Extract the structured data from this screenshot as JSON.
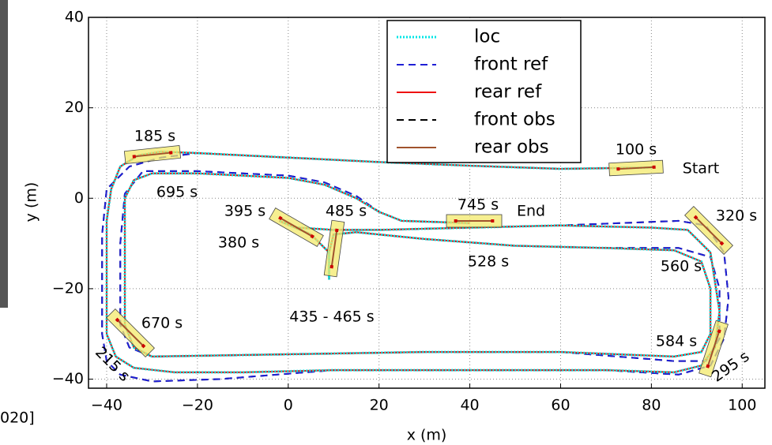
{
  "chart_data": {
    "type": "line",
    "xlabel": "x (m)",
    "ylabel": "y (m)",
    "xlim": [
      -44,
      105
    ],
    "ylim": [
      -42,
      40
    ],
    "xticks": [
      {
        "value": -40,
        "label": "−40"
      },
      {
        "value": -20,
        "label": "−20"
      },
      0,
      20,
      40,
      60,
      80,
      100
    ],
    "yticks": [
      {
        "value": -40,
        "label": "−40"
      },
      {
        "value": -20,
        "label": "−20"
      },
      0,
      20,
      40
    ],
    "grid": true,
    "legend": "upper center",
    "annotations": [
      "100 s",
      "Start",
      "185 s",
      "695 s",
      "395 s",
      "380 s",
      "485 s",
      "745 s",
      "End",
      "320 s",
      "528 s",
      "560 s",
      "435 - 465 s",
      "670 s",
      "584 s",
      "215 s",
      "295 s"
    ],
    "fragment": "020]",
    "series": [
      {
        "name": "loc",
        "color": "#00e5e5",
        "style": "dotted",
        "x": [
          80,
          60,
          40,
          20,
          0,
          -20,
          -28,
          -33,
          -37,
          -39,
          -40,
          -40,
          -38,
          -34,
          -25,
          -10,
          10,
          40,
          70,
          85,
          91,
          94,
          95,
          93,
          88,
          80,
          60,
          40,
          20,
          10,
          2,
          -2,
          5,
          9,
          9,
          9,
          10,
          15,
          30,
          50,
          70,
          85,
          91,
          93,
          93,
          91,
          85,
          60,
          30,
          0,
          -30,
          -34,
          -36,
          -36,
          -36,
          -34,
          -30,
          -20,
          0,
          8,
          15,
          20,
          25,
          40
        ],
        "y": [
          6.8,
          6.5,
          7.2,
          8,
          9,
          10,
          10.3,
          9.5,
          7,
          2,
          -5,
          -30,
          -35,
          -37.5,
          -38.5,
          -38.5,
          -38,
          -38,
          -38,
          -38.5,
          -37,
          -33,
          -25,
          -12,
          -7,
          -6.5,
          -6,
          -6.5,
          -7,
          -7,
          -6.5,
          -5,
          -8,
          -12,
          -18,
          -12,
          -8,
          -7.5,
          -9,
          -10.5,
          -11,
          -11.5,
          -14,
          -20,
          -30,
          -34,
          -35,
          -34,
          -34,
          -34.5,
          -35,
          -33,
          -28,
          -10,
          0,
          4,
          5.5,
          5.5,
          4.5,
          3,
          0,
          -3,
          -5,
          -5.5
        ]
      },
      {
        "name": "front ref",
        "color": "#1f1fd6",
        "style": "dashed",
        "x": [
          80,
          60,
          40,
          20,
          0,
          -20,
          -28,
          -35,
          -40,
          -41,
          -41,
          -40,
          -37,
          -30,
          -15,
          10,
          40,
          70,
          86,
          93,
          96,
          97,
          96,
          92,
          86,
          60,
          40,
          20,
          10,
          2,
          -2,
          5,
          9,
          9,
          9,
          10,
          15,
          30,
          50,
          70,
          86,
          93,
          95,
          95,
          92,
          85,
          60,
          30,
          0,
          -30,
          -35,
          -37,
          -37,
          -36,
          -32,
          -20,
          0,
          8,
          15,
          20,
          25,
          40
        ],
        "y": [
          6.8,
          6.5,
          7.2,
          8,
          9,
          10,
          9,
          7,
          2,
          -8,
          -30,
          -36,
          -39,
          -40.5,
          -40,
          -38,
          -38,
          -38,
          -39,
          -37,
          -31,
          -22,
          -12,
          -6,
          -5,
          -6,
          -6.5,
          -7,
          -7,
          -6.5,
          -5,
          -8,
          -12,
          -18,
          -12,
          -8,
          -7.5,
          -9,
          -10.5,
          -11,
          -11,
          -13,
          -20,
          -31,
          -36,
          -36,
          -34,
          -34,
          -34.5,
          -35,
          -33,
          -28,
          -10,
          1,
          6,
          6,
          5,
          3.5,
          0.5,
          -3,
          -5,
          -5.5
        ]
      },
      {
        "name": "rear ref",
        "color": "#ee1111",
        "style": "solid",
        "x": [
          80,
          60,
          40,
          20,
          0,
          -20,
          -28,
          -33,
          -37,
          -39,
          -40,
          -40,
          -38,
          -34,
          -25,
          -10,
          10,
          40,
          70,
          85,
          91,
          94,
          95,
          93,
          88,
          80,
          60,
          40,
          20,
          10,
          2,
          -2,
          5,
          9,
          9,
          9,
          10,
          15,
          30,
          50,
          70,
          85,
          91,
          93,
          93,
          91,
          85,
          60,
          30,
          0,
          -30,
          -34,
          -36,
          -36,
          -36,
          -34,
          -30,
          -20,
          0,
          8,
          15,
          20,
          25,
          40
        ],
        "y": [
          6.8,
          6.5,
          7.2,
          8,
          9,
          10,
          10.3,
          9.5,
          7,
          2,
          -5,
          -30,
          -35,
          -37.5,
          -38.5,
          -38.5,
          -38,
          -38,
          -38,
          -38.5,
          -37,
          -33,
          -25,
          -12,
          -7,
          -6.5,
          -6,
          -6.5,
          -7,
          -7,
          -6.5,
          -5,
          -8,
          -12,
          -18,
          -12,
          -8,
          -7.5,
          -9,
          -10.5,
          -11,
          -11.5,
          -14,
          -20,
          -30,
          -34,
          -35,
          -34,
          -34,
          -34.5,
          -35,
          -33,
          -28,
          -10,
          0,
          4,
          5.5,
          5.5,
          4.5,
          3,
          0,
          -3,
          -5,
          -5.5
        ]
      },
      {
        "name": "front obs",
        "color": "#000000",
        "style": "dashed",
        "x": [
          80,
          60,
          40,
          20,
          0,
          -20,
          -28,
          -35,
          -40,
          -41,
          -41,
          -40,
          -37,
          -30,
          -15,
          10,
          40,
          70,
          86,
          93,
          96,
          97,
          96,
          92,
          86,
          60,
          40,
          20,
          10,
          2,
          -2,
          5,
          9,
          9,
          9,
          10,
          15,
          30,
          50,
          70,
          86,
          93,
          95,
          95,
          92,
          85,
          60,
          30,
          0,
          -30,
          -35,
          -37,
          -37,
          -36,
          -32,
          -20,
          0,
          8,
          15,
          20,
          25,
          40
        ],
        "y": [
          6.8,
          6.5,
          7.2,
          8,
          9,
          10,
          9,
          7,
          2,
          -8,
          -30,
          -36,
          -39,
          -40.5,
          -40,
          -38,
          -38,
          -38,
          -39,
          -37,
          -31,
          -22,
          -12,
          -6,
          -5,
          -6,
          -6.5,
          -7,
          -7,
          -6.5,
          -5,
          -8,
          -12,
          -18,
          -12,
          -8,
          -7.5,
          -9,
          -10.5,
          -11,
          -11,
          -13,
          -20,
          -31,
          -36,
          -36,
          -34,
          -34,
          -34.5,
          -35,
          -33,
          -28,
          -10,
          1,
          6,
          6,
          5,
          3.5,
          0.5,
          -3,
          -5,
          -5.5
        ]
      },
      {
        "name": "rear obs",
        "color": "#a0522d",
        "style": "solid",
        "x": [
          80,
          60,
          40,
          20,
          0,
          -20,
          -28,
          -33,
          -37,
          -39,
          -40,
          -40,
          -38,
          -34,
          -25,
          -10,
          10,
          40,
          70,
          85,
          91,
          94,
          95,
          93,
          88,
          80,
          60,
          40,
          20,
          10,
          2,
          -2,
          5,
          9,
          9,
          9,
          10,
          15,
          30,
          50,
          70,
          85,
          91,
          93,
          93,
          91,
          85,
          60,
          30,
          0,
          -30,
          -34,
          -36,
          -36,
          -36,
          -34,
          -30,
          -20,
          0,
          8,
          15,
          20,
          25,
          40
        ],
        "y": [
          6.8,
          6.5,
          7.2,
          8,
          9,
          10,
          10.3,
          9.5,
          7,
          2,
          -5,
          -30,
          -35,
          -37.5,
          -38.5,
          -38.5,
          -38,
          -38,
          -38,
          -38.5,
          -37,
          -33,
          -25,
          -12,
          -7,
          -6.5,
          -6,
          -6.5,
          -7,
          -7,
          -6.5,
          -5,
          -8,
          -12,
          -18,
          -12,
          -8,
          -7.5,
          -9,
          -10.5,
          -11,
          -11.5,
          -14,
          -20,
          -30,
          -34,
          -35,
          -34,
          -34,
          -34.5,
          -35,
          -33,
          -28,
          -10,
          0,
          4,
          5.5,
          5.5,
          4.5,
          3,
          0,
          -3,
          -5,
          -5.5
        ]
      }
    ]
  }
}
